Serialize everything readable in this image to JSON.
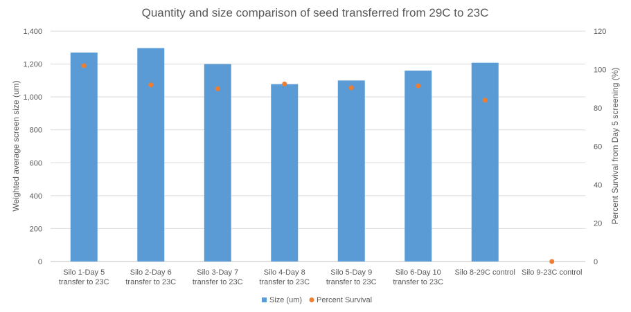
{
  "chart_data": {
    "type": "bar",
    "title": "Quantity and size comparison of seed transferred from 29C to 23C",
    "categories": [
      [
        "Silo 1-Day 5",
        "transfer to 23C"
      ],
      [
        "Silo 2-Day 6",
        "transfer to 23C"
      ],
      [
        "Silo 3-Day 7",
        "transfer to 23C"
      ],
      [
        "Silo 4-Day 8",
        "transfer to 23C"
      ],
      [
        "Silo 5-Day 9",
        "transfer to 23C"
      ],
      [
        "Silo 6-Day 10",
        "transfer to 23C"
      ],
      [
        "Silo 8-29C control"
      ],
      [
        "Silo 9-23C control"
      ]
    ],
    "ylabel": "Weighted average screen size (um)",
    "y2label": "Percent Survival from Day 5 screening (%)",
    "ylim": [
      0,
      1400
    ],
    "y2lim": [
      0,
      120
    ],
    "yticks": [
      "0",
      "200",
      "400",
      "600",
      "800",
      "1,000",
      "1,200",
      "1,400"
    ],
    "y2ticks": [
      "0",
      "20",
      "40",
      "60",
      "80",
      "100",
      "120"
    ],
    "series": [
      {
        "name": "Size (um)",
        "kind": "bar",
        "axis": "left",
        "color": "#5b9bd5",
        "values": [
          1270,
          1297,
          1200,
          1078,
          1100,
          1160,
          1208,
          0
        ]
      },
      {
        "name": "Percent Survival",
        "kind": "scatter",
        "axis": "right",
        "color": "#ed7d31",
        "values": [
          102,
          92,
          90,
          92.5,
          90.5,
          91.5,
          84,
          0
        ]
      }
    ],
    "grid": true,
    "legend": "bottom"
  }
}
